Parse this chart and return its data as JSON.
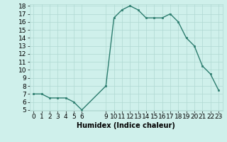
{
  "title": "",
  "xlabel": "Humidex (Indice chaleur)",
  "x_values": [
    0,
    1,
    2,
    3,
    4,
    5,
    6,
    9,
    10,
    11,
    12,
    13,
    14,
    15,
    16,
    17,
    18,
    19,
    20,
    21,
    22,
    23
  ],
  "y_values": [
    7.0,
    7.0,
    6.5,
    6.5,
    6.5,
    6.0,
    5.0,
    8.0,
    16.5,
    17.5,
    18.0,
    17.5,
    16.5,
    16.5,
    16.5,
    17.0,
    16.0,
    14.0,
    13.0,
    10.5,
    9.5,
    7.5
  ],
  "line_color": "#2d7d6f",
  "marker_color": "#2d7d6f",
  "bg_color": "#cff0eb",
  "grid_color": "#b0d8d2",
  "text_color": "#000000",
  "ylim_min": 5,
  "ylim_max": 18,
  "xlim_min": -0.5,
  "xlim_max": 23.5,
  "yticks": [
    5,
    6,
    7,
    8,
    9,
    10,
    11,
    12,
    13,
    14,
    15,
    16,
    17,
    18
  ],
  "xticks": [
    0,
    1,
    2,
    3,
    4,
    5,
    6,
    9,
    10,
    11,
    12,
    13,
    14,
    15,
    16,
    17,
    18,
    19,
    20,
    21,
    22,
    23
  ],
  "xlabel_fontsize": 7,
  "tick_fontsize": 6.5,
  "linewidth": 1.0,
  "markersize": 2.0
}
